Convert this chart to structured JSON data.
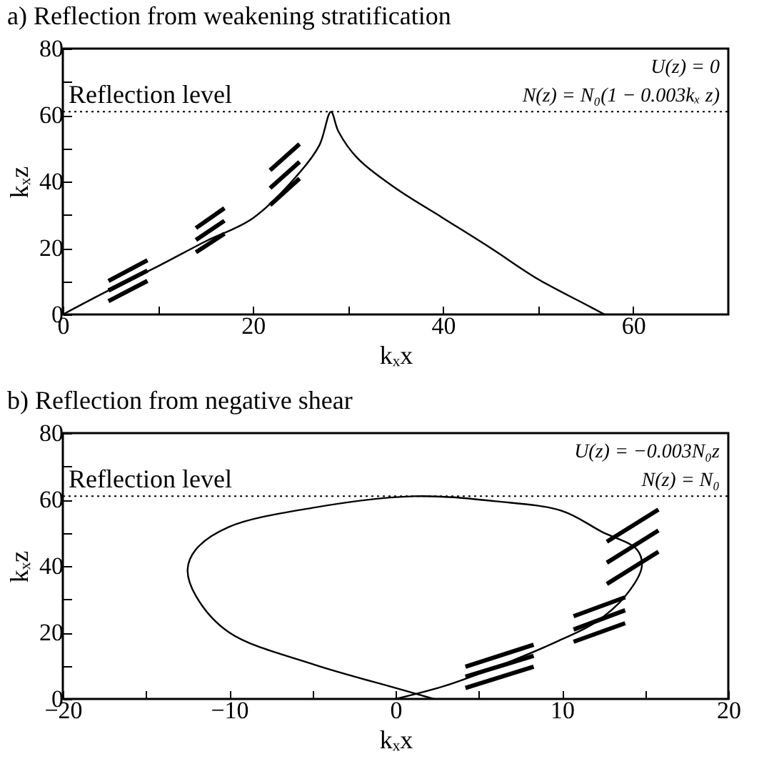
{
  "chart_data": [
    {
      "type": "line",
      "title": "a) Reflection from weakening stratification",
      "xlabel": "kₓx",
      "ylabel": "kₓz",
      "xlim": [
        0,
        70
      ],
      "xticks": [
        0,
        {
          "value": 10,
          "label": null
        },
        20,
        {
          "value": 30,
          "label": null
        },
        40,
        {
          "value": 50,
          "label": null
        },
        60
      ],
      "ylim": [
        0,
        80
      ],
      "yticks": [
        0,
        {
          "value": 10,
          "label": null
        },
        20,
        {
          "value": 30,
          "label": null
        },
        40,
        {
          "value": 50,
          "label": null
        },
        60,
        {
          "value": 70,
          "label": null
        },
        80
      ],
      "grid": false,
      "line_style": "solid",
      "ref_lines": [
        {
          "axis": "y",
          "value": 61,
          "label": "Reflection level",
          "line_style": "dotted"
        }
      ],
      "annotations": [
        "U(z) = 0",
        "N(z) = N₀(1 − 0.003kₓ z)"
      ],
      "series": [
        {
          "color": "#000000",
          "x": [
            0,
            5,
            10,
            15,
            20,
            25,
            27,
            28.2,
            29,
            31,
            35,
            40,
            45,
            50,
            55,
            57
          ],
          "values": [
            0,
            7.5,
            14.5,
            22,
            29,
            43,
            51,
            61,
            55,
            47,
            38,
            29,
            20,
            10.6,
            3,
            0
          ]
        },
        {
          "color": "#000000",
          "x": [
            4.8,
            8.9
          ],
          "values": [
            10.1,
            16.3
          ]
        },
        {
          "color": "#000000",
          "x": [
            4.8,
            8.9
          ],
          "values": [
            7.2,
            13.2
          ]
        },
        {
          "color": "#000000",
          "x": [
            4.8,
            8.9
          ],
          "values": [
            4,
            10.1
          ]
        },
        {
          "color": "#000000",
          "x": [
            14,
            17
          ],
          "values": [
            26,
            32
          ]
        },
        {
          "color": "#000000",
          "x": [
            14,
            17
          ],
          "values": [
            22.4,
            28.2
          ]
        },
        {
          "color": "#000000",
          "x": [
            14,
            17
          ],
          "values": [
            18.7,
            24.3
          ]
        },
        {
          "color": "#000000",
          "x": [
            21.8,
            24.9
          ],
          "values": [
            43.4,
            51.3
          ]
        },
        {
          "color": "#000000",
          "x": [
            21.8,
            24.9
          ],
          "values": [
            38,
            45.9
          ]
        },
        {
          "color": "#000000",
          "x": [
            21.8,
            24.9
          ],
          "values": [
            32.9,
            40.9
          ]
        }
      ]
    },
    {
      "type": "line",
      "title": "b) Reflection from negative shear",
      "xlabel": "kₓx",
      "ylabel": "kₓz",
      "xlim": [
        -20,
        20
      ],
      "xticks": [
        -20,
        {
          "value": -15,
          "label": null
        },
        -10,
        {
          "value": -5,
          "label": null
        },
        0,
        {
          "value": 5,
          "label": null
        },
        10,
        {
          "value": 15,
          "label": null
        },
        20
      ],
      "ylim": [
        0,
        80
      ],
      "yticks": [
        0,
        {
          "value": 10,
          "label": null
        },
        20,
        {
          "value": 30,
          "label": null
        },
        40,
        {
          "value": 50,
          "label": null
        },
        60,
        {
          "value": 70,
          "label": null
        },
        80
      ],
      "grid": false,
      "line_style": "solid",
      "ref_lines": [
        {
          "axis": "y",
          "value": 61,
          "label": "Reflection level",
          "line_style": "dotted"
        }
      ],
      "annotations": [
        "U(z) = −0.003N₀z",
        "N(z) = N₀"
      ],
      "series": [
        {
          "color": "#000000",
          "x": [
            0,
            3,
            6,
            9.8,
            12,
            13.8,
            14.8,
            14.5,
            12.4,
            10,
            6,
            1.1,
            -5,
            -10,
            -12,
            -12.5,
            -12,
            -10,
            -5,
            0,
            2.3
          ],
          "values": [
            0,
            4,
            9.5,
            17.5,
            23,
            30.9,
            39.8,
            45,
            50.3,
            56.6,
            59.5,
            61,
            57.5,
            51.8,
            45,
            39,
            31,
            20,
            10.5,
            3.3,
            0
          ]
        },
        {
          "color": "#000000",
          "x": [
            4.2,
            8.3
          ],
          "values": [
            9.7,
            16.3
          ]
        },
        {
          "color": "#000000",
          "x": [
            4.2,
            8.3
          ],
          "values": [
            6.7,
            13
          ]
        },
        {
          "color": "#000000",
          "x": [
            4.2,
            8.3
          ],
          "values": [
            3.3,
            9.7
          ]
        },
        {
          "color": "#000000",
          "x": [
            10.7,
            13.8
          ],
          "values": [
            24.9,
            30.6
          ]
        },
        {
          "color": "#000000",
          "x": [
            10.7,
            13.8
          ],
          "values": [
            20.9,
            26.7
          ]
        },
        {
          "color": "#000000",
          "x": [
            10.7,
            13.8
          ],
          "values": [
            17.2,
            22.8
          ]
        },
        {
          "color": "#000000",
          "x": [
            12.7,
            15.8
          ],
          "values": [
            47.3,
            57
          ]
        },
        {
          "color": "#000000",
          "x": [
            12.7,
            15.8
          ],
          "values": [
            41,
            50.7
          ]
        },
        {
          "color": "#000000",
          "x": [
            12.7,
            15.8
          ],
          "values": [
            34.6,
            44.3
          ]
        }
      ]
    }
  ]
}
